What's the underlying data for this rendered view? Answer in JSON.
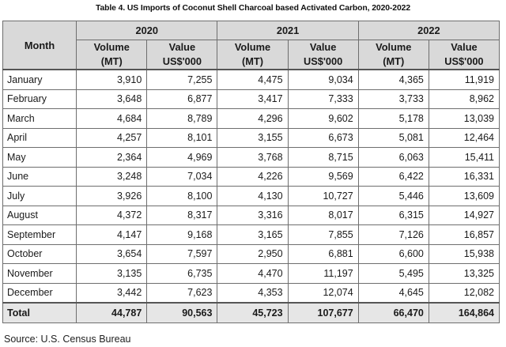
{
  "title": "Table 4. US Imports of Coconut Shell Charcoal based Activated Carbon, 2020-2022",
  "header": {
    "month": "Month",
    "years": [
      "2020",
      "2021",
      "2022"
    ],
    "volume_line1": "Volume",
    "volume_line2": "(MT)",
    "value_line1": "Value",
    "value_line2": "US$'000"
  },
  "rows": [
    {
      "month": "January",
      "v2020": "3,910",
      "val2020": "7,255",
      "v2021": "4,475",
      "val2021": "9,034",
      "v2022": "4,365",
      "val2022": "11,919"
    },
    {
      "month": "February",
      "v2020": "3,648",
      "val2020": "6,877",
      "v2021": "3,417",
      "val2021": "7,333",
      "v2022": "3,733",
      "val2022": "8,962"
    },
    {
      "month": "March",
      "v2020": "4,684",
      "val2020": "8,789",
      "v2021": "4,296",
      "val2021": "9,602",
      "v2022": "5,178",
      "val2022": "13,039"
    },
    {
      "month": "April",
      "v2020": "4,257",
      "val2020": "8,101",
      "v2021": "3,155",
      "val2021": "6,673",
      "v2022": "5,081",
      "val2022": "12,464"
    },
    {
      "month": "May",
      "v2020": "2,364",
      "val2020": "4,969",
      "v2021": "3,768",
      "val2021": "8,715",
      "v2022": "6,063",
      "val2022": "15,411"
    },
    {
      "month": "June",
      "v2020": "3,248",
      "val2020": "7,034",
      "v2021": "4,226",
      "val2021": "9,569",
      "v2022": "6,422",
      "val2022": "16,331"
    },
    {
      "month": "July",
      "v2020": "3,926",
      "val2020": "8,100",
      "v2021": "4,130",
      "val2021": "10,727",
      "v2022": "5,446",
      "val2022": "13,609"
    },
    {
      "month": "August",
      "v2020": "4,372",
      "val2020": "8,317",
      "v2021": "3,316",
      "val2021": "8,017",
      "v2022": "6,315",
      "val2022": "14,927"
    },
    {
      "month": "September",
      "v2020": "4,147",
      "val2020": "9,168",
      "v2021": "3,165",
      "val2021": "7,855",
      "v2022": "7,126",
      "val2022": "16,857"
    },
    {
      "month": "October",
      "v2020": "3,654",
      "val2020": "7,597",
      "v2021": "2,950",
      "val2021": "6,881",
      "v2022": "6,600",
      "val2022": "15,938"
    },
    {
      "month": "November",
      "v2020": "3,135",
      "val2020": "6,735",
      "v2021": "4,470",
      "val2021": "11,197",
      "v2022": "5,495",
      "val2022": "13,325"
    },
    {
      "month": "December",
      "v2020": "3,442",
      "val2020": "7,623",
      "v2021": "4,353",
      "val2021": "12,074",
      "v2022": "4,645",
      "val2022": "12,082"
    }
  ],
  "total": {
    "month": "Total",
    "v2020": "44,787",
    "val2020": "90,563",
    "v2021": "45,723",
    "val2021": "107,677",
    "v2022": "66,470",
    "val2022": "164,864"
  },
  "source": "Source: U.S. Census Bureau"
}
